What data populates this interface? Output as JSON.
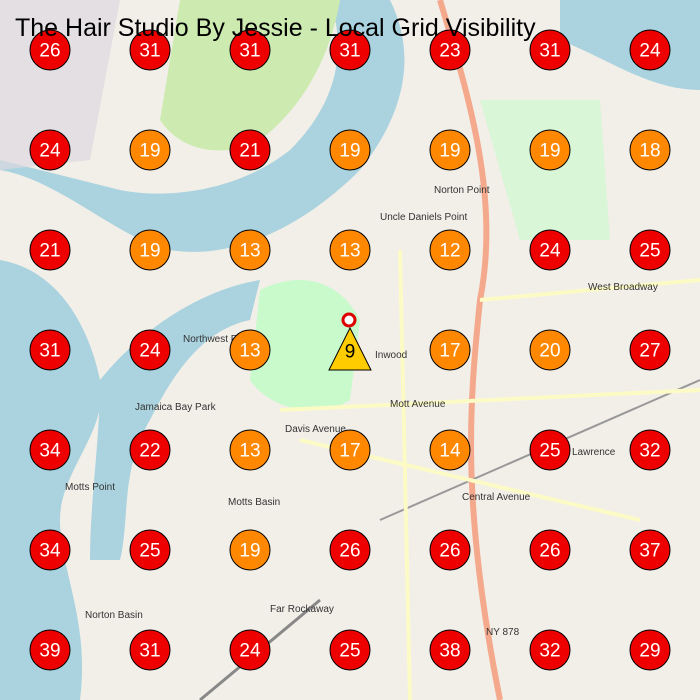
{
  "title": "The Hair Studio By Jessie - Local Grid Visibility",
  "grid": {
    "rows": [
      [
        {
          "value": 26,
          "color": "#ee0000"
        },
        {
          "value": 31,
          "color": "#ee0000"
        },
        {
          "value": 31,
          "color": "#ee0000"
        },
        {
          "value": 31,
          "color": "#ee0000"
        },
        {
          "value": 23,
          "color": "#ee0000"
        },
        {
          "value": 31,
          "color": "#ee0000"
        },
        {
          "value": 24,
          "color": "#ee0000"
        }
      ],
      [
        {
          "value": 24,
          "color": "#ee0000"
        },
        {
          "value": 19,
          "color": "#ff8800"
        },
        {
          "value": 21,
          "color": "#ee0000"
        },
        {
          "value": 19,
          "color": "#ff8800"
        },
        {
          "value": 19,
          "color": "#ff8800"
        },
        {
          "value": 19,
          "color": "#ff8800"
        },
        {
          "value": 18,
          "color": "#ff8800"
        }
      ],
      [
        {
          "value": 21,
          "color": "#ee0000"
        },
        {
          "value": 19,
          "color": "#ff8800"
        },
        {
          "value": 13,
          "color": "#ff8800"
        },
        {
          "value": 13,
          "color": "#ff8800"
        },
        {
          "value": 12,
          "color": "#ff8800"
        },
        {
          "value": 24,
          "color": "#ee0000"
        },
        {
          "value": 25,
          "color": "#ee0000"
        }
      ],
      [
        {
          "value": 31,
          "color": "#ee0000"
        },
        {
          "value": 24,
          "color": "#ee0000"
        },
        {
          "value": 13,
          "color": "#ff8800"
        },
        {
          "value": 9,
          "color": "#ffcc00",
          "shape": "triangle"
        },
        {
          "value": 17,
          "color": "#ff8800"
        },
        {
          "value": 20,
          "color": "#ff8800"
        },
        {
          "value": 27,
          "color": "#ee0000"
        }
      ],
      [
        {
          "value": 34,
          "color": "#ee0000"
        },
        {
          "value": 22,
          "color": "#ee0000"
        },
        {
          "value": 13,
          "color": "#ff8800"
        },
        {
          "value": 17,
          "color": "#ff8800"
        },
        {
          "value": 14,
          "color": "#ff8800"
        },
        {
          "value": 25,
          "color": "#ee0000"
        },
        {
          "value": 32,
          "color": "#ee0000"
        }
      ],
      [
        {
          "value": 34,
          "color": "#ee0000"
        },
        {
          "value": 25,
          "color": "#ee0000"
        },
        {
          "value": 19,
          "color": "#ff8800"
        },
        {
          "value": 26,
          "color": "#ee0000"
        },
        {
          "value": 26,
          "color": "#ee0000"
        },
        {
          "value": 26,
          "color": "#ee0000"
        },
        {
          "value": 37,
          "color": "#ee0000"
        }
      ],
      [
        {
          "value": 39,
          "color": "#ee0000"
        },
        {
          "value": 31,
          "color": "#ee0000"
        },
        {
          "value": 24,
          "color": "#ee0000"
        },
        {
          "value": 25,
          "color": "#ee0000"
        },
        {
          "value": 38,
          "color": "#ee0000"
        },
        {
          "value": 32,
          "color": "#ee0000"
        },
        {
          "value": 29,
          "color": "#ee0000"
        }
      ]
    ]
  },
  "map_labels": [
    "Inwood",
    "Lawrence",
    "Far Rockaway",
    "Mott Avenue",
    "Davis Avenue",
    "Norton Point",
    "Uncle Daniels Point",
    "Northwest Point",
    "Motts Point",
    "West Broadway",
    "Central Avenue",
    "NY 878",
    "Jamaica Bay Park",
    "Norton Basin",
    "Motts Basin"
  ]
}
